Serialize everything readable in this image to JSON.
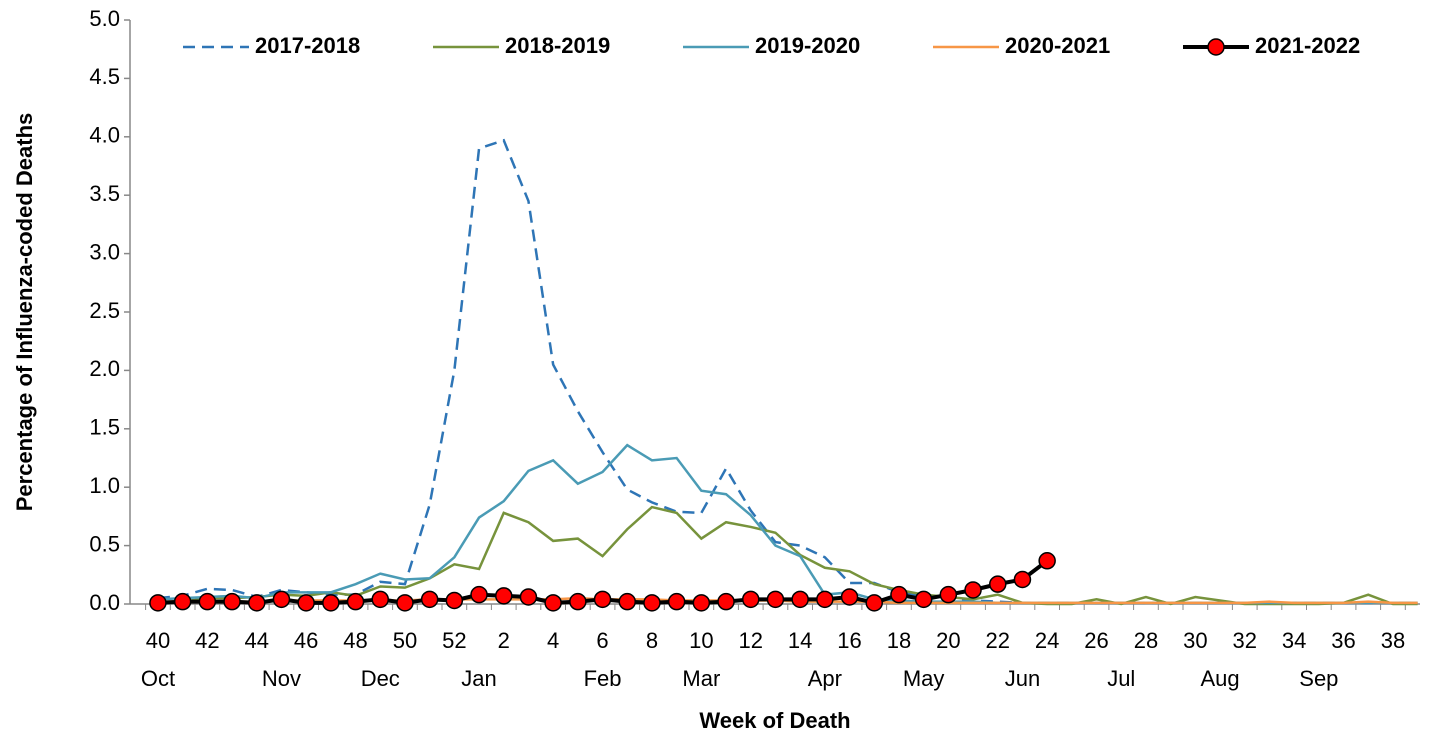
{
  "chart_data": {
    "type": "line",
    "x_label": "Week of Death",
    "y_label": "Percentage of Influenza-coded Deaths",
    "categories": [
      "40",
      null,
      "42",
      null,
      "44",
      null,
      "46",
      null,
      "48",
      null,
      "50",
      null,
      "52",
      null,
      "2",
      null,
      "4",
      null,
      "6",
      null,
      "8",
      null,
      "10",
      null,
      "12",
      null,
      "14",
      null,
      "16",
      null,
      "18",
      null,
      "20",
      null,
      "22",
      null,
      "24",
      null,
      "26",
      null,
      "28",
      null,
      "30",
      null,
      "32",
      null,
      "34",
      null,
      "36",
      null,
      "38",
      null
    ],
    "months": [
      "Oct",
      null,
      null,
      null,
      null,
      "Nov",
      null,
      null,
      null,
      "Dec",
      null,
      null,
      null,
      "Jan",
      null,
      null,
      null,
      null,
      "Feb",
      null,
      null,
      null,
      "Mar",
      null,
      null,
      null,
      null,
      "Apr",
      null,
      null,
      null,
      "May",
      null,
      null,
      null,
      "Jun",
      null,
      null,
      null,
      "Jul",
      null,
      null,
      null,
      "Aug",
      null,
      null,
      null,
      "Sep",
      null,
      null,
      null,
      null
    ],
    "ylim": [
      0,
      5
    ],
    "yticks": [
      {
        "value": 0,
        "label": "0.0"
      },
      0.5,
      {
        "value": 1,
        "label": "1.0"
      },
      1.5,
      {
        "value": 2,
        "label": "2.0"
      },
      2.5,
      {
        "value": 3,
        "label": "3.0"
      },
      3.5,
      {
        "value": 4,
        "label": "4.0"
      },
      4.5,
      {
        "value": 5,
        "label": "5.0"
      }
    ],
    "legend": "top",
    "series": [
      {
        "name": "2017-2018",
        "color": "#2e75b6",
        "style": "dashed",
        "values": [
          0.05,
          0.07,
          0.13,
          0.12,
          0.06,
          0.12,
          0.1,
          0.08,
          0.08,
          0.19,
          0.17,
          0.85,
          2.0,
          3.9,
          3.97,
          3.45,
          2.05,
          1.65,
          1.3,
          0.98,
          0.87,
          0.79,
          0.78,
          1.16,
          0.8,
          0.53,
          0.5,
          0.4,
          0.18,
          0.18,
          0.1,
          0.07,
          0.05,
          0.03,
          0.02,
          0.01,
          0.01,
          0.01,
          0.01,
          0.01,
          0.01,
          0.01,
          0.01,
          0.01,
          0.01,
          0.01,
          0.01,
          0.01,
          0.01,
          0.01,
          0.01,
          0.01
        ]
      },
      {
        "name": "2018-2019",
        "color": "#77933c",
        "style": "solid",
        "values": [
          0.02,
          0.02,
          0.05,
          0.05,
          0.06,
          0.08,
          0.07,
          0.1,
          0.07,
          0.15,
          0.14,
          0.22,
          0.34,
          0.3,
          0.78,
          0.7,
          0.54,
          0.56,
          0.41,
          0.64,
          0.83,
          0.78,
          0.56,
          0.7,
          0.66,
          0.61,
          0.42,
          0.31,
          0.28,
          0.17,
          0.12,
          0.08,
          0.06,
          0.04,
          0.08,
          0.01,
          0,
          0,
          0.04,
          0,
          0.06,
          0,
          0.06,
          0.03,
          0,
          0,
          0,
          0,
          0.01,
          0.08,
          0,
          0
        ]
      },
      {
        "name": "2019-2020",
        "color": "#4a9bb5",
        "style": "solid",
        "values": [
          0.04,
          0.05,
          0.06,
          0.07,
          0.05,
          0.1,
          0.1,
          0.1,
          0.17,
          0.26,
          0.21,
          0.22,
          0.4,
          0.74,
          0.88,
          1.14,
          1.23,
          1.03,
          1.13,
          1.36,
          1.23,
          1.25,
          0.97,
          0.94,
          0.76,
          0.5,
          0.41,
          0.08,
          0.1,
          0.04,
          0.03,
          0.02,
          0.02,
          0.02,
          0.01,
          0.01,
          0.01,
          0.01,
          0.01,
          0.01,
          0.01,
          0.01,
          0.01,
          0.01,
          0.01,
          0.01,
          0.01,
          0.01,
          0.01,
          0.01,
          0.01,
          0.01
        ]
      },
      {
        "name": "2020-2021",
        "color": "#f79646",
        "style": "solid",
        "values": [
          0.02,
          0.02,
          0.02,
          0.02,
          0.02,
          0.03,
          0.03,
          0.03,
          0.03,
          0.03,
          0.03,
          0.04,
          0.04,
          0.04,
          0.04,
          0.04,
          0.04,
          0.05,
          0.04,
          0.04,
          0.04,
          0.03,
          0.03,
          0.03,
          0.03,
          0.03,
          0.02,
          0.02,
          0.02,
          0.02,
          0.01,
          0.01,
          0.01,
          0.01,
          0.01,
          0.01,
          0.01,
          0.01,
          0.01,
          0.01,
          0.01,
          0.01,
          0.01,
          0.01,
          0.01,
          0.02,
          0.01,
          0.01,
          0.01,
          0.02,
          0.01,
          0.01
        ]
      },
      {
        "name": "2021-2022",
        "color": "#000000",
        "style": "solid",
        "marker": "circle",
        "marker_color": "#ff0000",
        "values": [
          0.01,
          0.02,
          0.02,
          0.02,
          0.01,
          0.04,
          0.01,
          0.01,
          0.02,
          0.04,
          0.01,
          0.04,
          0.03,
          0.08,
          0.07,
          0.06,
          0.01,
          0.02,
          0.04,
          0.02,
          0.01,
          0.02,
          0.01,
          0.02,
          0.04,
          0.04,
          0.04,
          0.04,
          0.06,
          0.01,
          0.08,
          0.04,
          0.08,
          0.12,
          0.17,
          0.21,
          0.37,
          null,
          null,
          null,
          null,
          null,
          null,
          null,
          null,
          null,
          null,
          null,
          null,
          null,
          null,
          null
        ]
      }
    ]
  }
}
